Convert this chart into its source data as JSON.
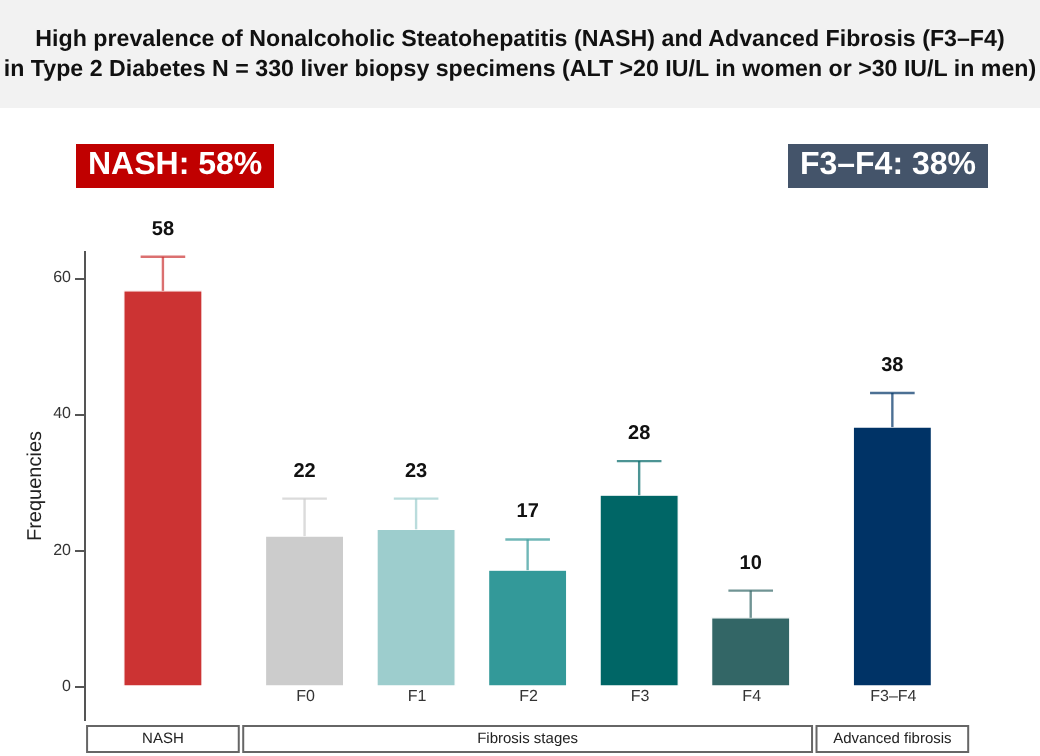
{
  "chart_data": {
    "type": "bar",
    "title": "High prevalence of Nonalcoholic Steatohepatitis (NASH) and Advanced Fibrosis (F3–F4)",
    "subtitle": "in Type 2 Diabetes N = 330 liver biopsy specimens (ALT >20 IU/L in women or >30 IU/L in men)",
    "ylabel": "Frequencies",
    "categories": [
      null,
      "F0",
      "F1",
      "F2",
      "F3",
      "F4",
      "F3–F4"
    ],
    "values": [
      58,
      22,
      23,
      17,
      28,
      10,
      38
    ],
    "colors": [
      "#cc3333",
      "#cccccc",
      "#9dcdcd",
      "#339999",
      "#006666",
      "#336666",
      "#003366"
    ],
    "errors": [
      [
        58,
        63
      ],
      [
        22,
        27.5
      ],
      [
        23,
        27.5
      ],
      [
        17,
        21.5
      ],
      [
        28,
        33
      ],
      [
        10,
        14
      ],
      [
        38,
        43
      ]
    ],
    "data_labels": true,
    "ylim": [
      -5,
      64
    ],
    "yticks": [
      0,
      20,
      40,
      60
    ],
    "grid": false,
    "annotations": [
      "NASH: 58%",
      "F3–F4: 38%",
      "NASH",
      "Fibrosis stages",
      "Advanced fibrosis"
    ]
  }
}
